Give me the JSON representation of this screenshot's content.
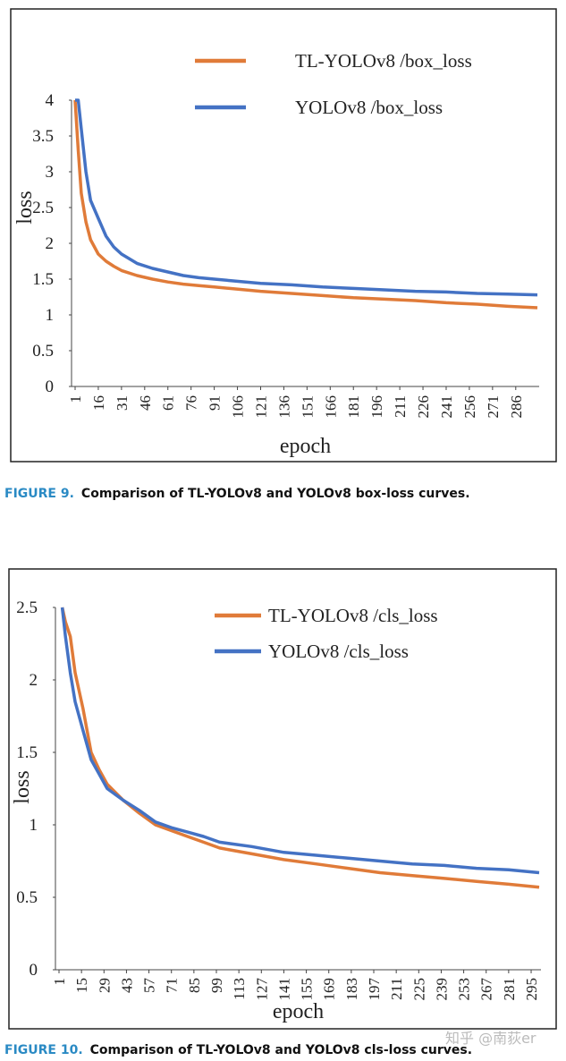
{
  "chart_data": [
    {
      "type": "line",
      "x_label": "epoch",
      "y_label": "loss",
      "caption_label": "FIGURE 9.",
      "caption": "Comparison of TL-YOLOv8 and YOLOv8 box-loss curves.",
      "xlim": [
        1,
        300
      ],
      "xticks": [
        1,
        16,
        31,
        46,
        61,
        76,
        91,
        106,
        121,
        136,
        151,
        166,
        181,
        196,
        211,
        226,
        241,
        256,
        271,
        286
      ],
      "ylim": [
        0,
        4
      ],
      "yticks": [
        0,
        0.5,
        1,
        1.5,
        2,
        2.5,
        3,
        3.5,
        4
      ],
      "x": [
        1,
        3,
        5,
        8,
        11,
        16,
        21,
        26,
        31,
        41,
        51,
        61,
        71,
        81,
        91,
        101,
        121,
        141,
        161,
        181,
        201,
        221,
        241,
        261,
        281,
        300
      ],
      "series": [
        {
          "name": "TL-YOLOv8  /box_loss",
          "color": "#e07b39",
          "values": [
            4.0,
            3.3,
            2.7,
            2.3,
            2.05,
            1.85,
            1.75,
            1.68,
            1.62,
            1.55,
            1.5,
            1.46,
            1.43,
            1.41,
            1.39,
            1.37,
            1.33,
            1.3,
            1.27,
            1.24,
            1.22,
            1.2,
            1.17,
            1.15,
            1.12,
            1.1
          ]
        },
        {
          "name": "YOLOv8  /box_loss",
          "color": "#4472c4",
          "values": [
            4.0,
            4.0,
            3.6,
            3.0,
            2.6,
            2.35,
            2.1,
            1.95,
            1.85,
            1.72,
            1.65,
            1.6,
            1.55,
            1.52,
            1.5,
            1.48,
            1.44,
            1.42,
            1.39,
            1.37,
            1.35,
            1.33,
            1.32,
            1.3,
            1.29,
            1.28
          ]
        }
      ]
    },
    {
      "type": "line",
      "x_label": "epoch",
      "y_label": "loss",
      "caption_label": "FIGURE 10.",
      "caption": "Comparison of TL-YOLOv8 and YOLOv8 cls-loss curves.",
      "xlim": [
        1,
        300
      ],
      "xticks": [
        1,
        15,
        29,
        43,
        57,
        71,
        85,
        99,
        113,
        127,
        141,
        155,
        169,
        183,
        197,
        211,
        225,
        239,
        253,
        267,
        281,
        295
      ],
      "ylim": [
        0,
        2.5
      ],
      "yticks": [
        0,
        0.5,
        1,
        1.5,
        2,
        2.5
      ],
      "x": [
        3,
        5,
        8,
        11,
        16,
        21,
        26,
        31,
        41,
        51,
        61,
        71,
        81,
        91,
        101,
        121,
        141,
        161,
        181,
        201,
        221,
        241,
        261,
        281,
        300
      ],
      "series": [
        {
          "name": "TL-YOLOv8 /cls_loss",
          "color": "#e07b39",
          "values": [
            2.5,
            2.4,
            2.3,
            2.05,
            1.8,
            1.5,
            1.38,
            1.28,
            1.17,
            1.08,
            1.0,
            0.96,
            0.92,
            0.88,
            0.84,
            0.8,
            0.76,
            0.73,
            0.7,
            0.67,
            0.65,
            0.63,
            0.61,
            0.59,
            0.57
          ]
        },
        {
          "name": "YOLOv8 /cls_loss",
          "color": "#4472c4",
          "values": [
            2.5,
            2.3,
            2.05,
            1.85,
            1.65,
            1.45,
            1.35,
            1.25,
            1.17,
            1.1,
            1.02,
            0.98,
            0.95,
            0.92,
            0.88,
            0.85,
            0.81,
            0.79,
            0.77,
            0.75,
            0.73,
            0.72,
            0.7,
            0.69,
            0.67
          ]
        }
      ]
    }
  ],
  "watermark": "知乎 @南荻er"
}
